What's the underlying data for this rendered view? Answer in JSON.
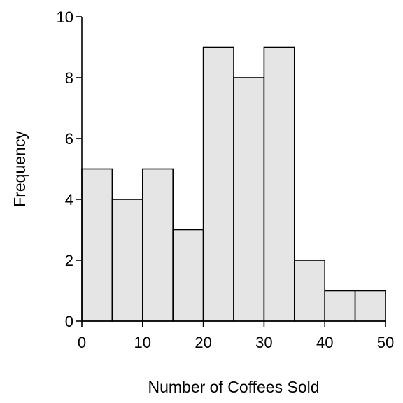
{
  "chart_data": {
    "type": "bar",
    "histogram": true,
    "title": "",
    "xlabel": "Number of Coffees Sold",
    "ylabel": "Frequency",
    "bin_edges": [
      0,
      5,
      10,
      15,
      20,
      25,
      30,
      35,
      40,
      45,
      50
    ],
    "values": [
      5,
      4,
      5,
      3,
      9,
      8,
      9,
      2,
      1,
      1
    ],
    "xlim": [
      0,
      50
    ],
    "ylim": [
      0,
      10
    ],
    "xticks": [
      0,
      10,
      20,
      30,
      40,
      50
    ],
    "yticks": [
      0,
      2,
      4,
      6,
      8,
      10
    ],
    "grid": false,
    "legend": "none",
    "bar_fill": "#e5e5e5",
    "bar_edge": "#000000"
  }
}
